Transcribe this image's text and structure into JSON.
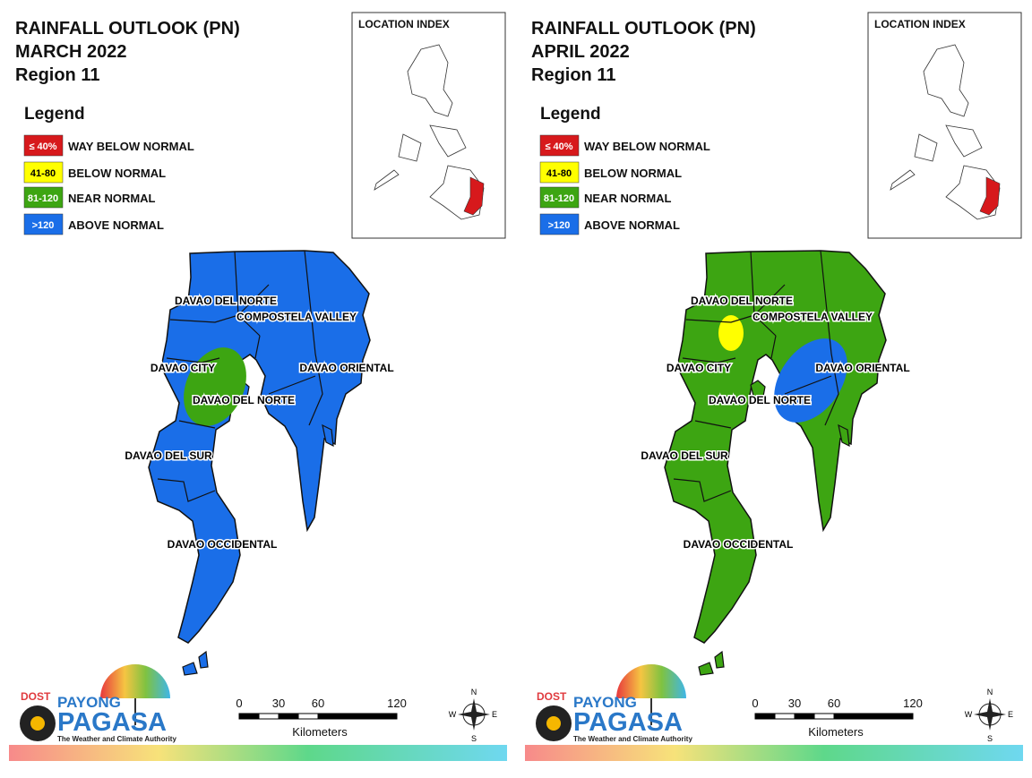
{
  "panels": [
    {
      "title": [
        "RAINFALL OUTLOOK (PN)",
        "MARCH 2022",
        "Region 11"
      ],
      "legend": {
        "title": "Legend",
        "items": [
          {
            "swatch": "≤ 40%",
            "label": "WAY BELOW NORMAL",
            "color": "#d7191c"
          },
          {
            "swatch": "41-80",
            "label": "BELOW NORMAL",
            "color": "#ffff00"
          },
          {
            "swatch": "81-120",
            "label": "NEAR NORMAL",
            "color": "#3da512"
          },
          {
            "swatch": ">120",
            "label": "ABOVE NORMAL",
            "color": "#1a6ee8"
          }
        ]
      },
      "map_fill": "#1a6ee8",
      "overlays": [
        {
          "color": "#3da512"
        }
      ],
      "location_index": "LOCATION INDEX",
      "map_labels": [
        "DAVAO DEL NORTE",
        "COMPOSTELA VALLEY",
        "DAVAO CITY",
        "DAVAO ORIENTAL",
        "DAVAO DEL NORTE",
        "DAVAO DEL SUR",
        "DAVAO OCCIDENTAL"
      ],
      "scale": {
        "ticks": [
          0,
          30,
          60,
          120
        ],
        "unit": "Kilometers"
      },
      "compass": {
        "n": "N",
        "e": "E",
        "s": "S",
        "w": "W"
      },
      "logo": {
        "dost": "DOST",
        "payong": "PAYONG",
        "pagasa": "PAGASA",
        "tagline": "The Weather and Climate Authority"
      }
    },
    {
      "title": [
        "RAINFALL OUTLOOK (PN)",
        "APRIL 2022",
        "Region 11"
      ],
      "legend": {
        "title": "Legend",
        "items": [
          {
            "swatch": "≤ 40%",
            "label": "WAY BELOW NORMAL",
            "color": "#d7191c"
          },
          {
            "swatch": "41-80",
            "label": "BELOW NORMAL",
            "color": "#ffff00"
          },
          {
            "swatch": "81-120",
            "label": "NEAR NORMAL",
            "color": "#3da512"
          },
          {
            "swatch": ">120",
            "label": "ABOVE NORMAL",
            "color": "#1a6ee8"
          }
        ]
      },
      "map_fill": "#3da512",
      "overlays": [
        {
          "color": "#ffff00"
        },
        {
          "color": "#1a6ee8"
        }
      ],
      "location_index": "LOCATION INDEX",
      "map_labels": [
        "DAVAO DEL NORTE",
        "COMPOSTELA VALLEY",
        "DAVAO CITY",
        "DAVAO ORIENTAL",
        "DAVAO DEL NORTE",
        "DAVAO DEL SUR",
        "DAVAO OCCIDENTAL"
      ],
      "scale": {
        "ticks": [
          0,
          30,
          60,
          120
        ],
        "unit": "Kilometers"
      },
      "compass": {
        "n": "N",
        "e": "E",
        "s": "S",
        "w": "W"
      },
      "logo": {
        "dost": "DOST",
        "payong": "PAYONG",
        "pagasa": "PAGASA",
        "tagline": "The Weather and Climate Authority"
      }
    }
  ]
}
